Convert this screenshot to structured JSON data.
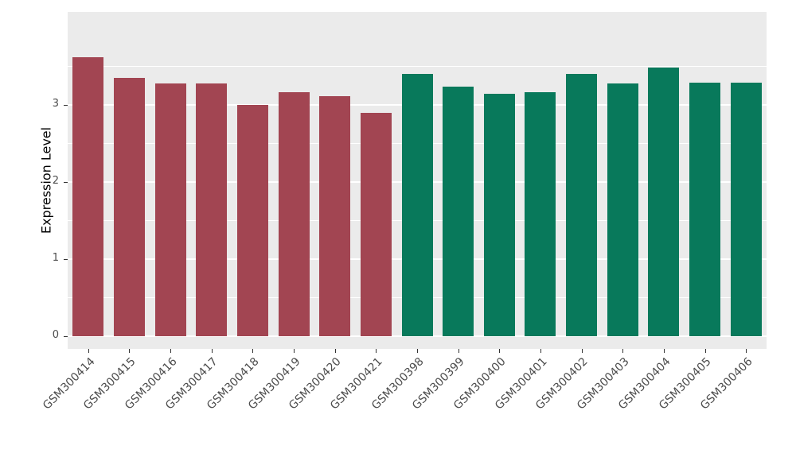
{
  "figure": {
    "background": "#FFFFFF",
    "panel_background": "#EBEBEB",
    "grid_color": "#FFFFFF",
    "tick_label_color": "#4D4D4D",
    "axis_line_color": "#333333",
    "axis_title_color": "#000000"
  },
  "chart_data": {
    "type": "bar",
    "title": "",
    "xlabel": "",
    "ylabel": "Expression Level",
    "ylim": [
      0,
      3.8
    ],
    "yticks": [
      0,
      1,
      2,
      3
    ],
    "yticks_minor": [
      0.5,
      1.5,
      2.5,
      3.5
    ],
    "grid": true,
    "legend_position": "none",
    "categories": [
      "GSM300414",
      "GSM300415",
      "GSM300416",
      "GSM300417",
      "GSM300418",
      "GSM300419",
      "GSM300420",
      "GSM300421",
      "GSM300398",
      "GSM300399",
      "GSM300400",
      "GSM300401",
      "GSM300402",
      "GSM300403",
      "GSM300404",
      "GSM300405",
      "GSM300406"
    ],
    "values": [
      3.62,
      3.35,
      3.28,
      3.28,
      3.0,
      3.17,
      3.11,
      2.9,
      3.4,
      3.24,
      3.14,
      3.16,
      3.4,
      3.28,
      3.48,
      3.29,
      3.29
    ],
    "groups": [
      "A",
      "A",
      "A",
      "A",
      "A",
      "A",
      "A",
      "A",
      "B",
      "B",
      "B",
      "B",
      "B",
      "B",
      "B",
      "B",
      "B"
    ],
    "group_colors": {
      "A": "#A24552",
      "B": "#08795B"
    }
  }
}
